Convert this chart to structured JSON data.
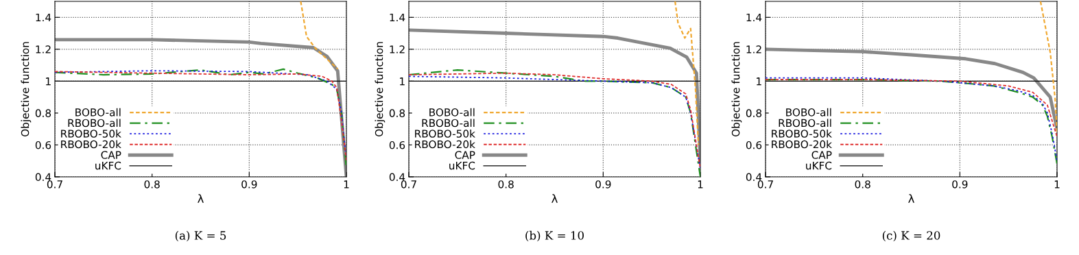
{
  "chart_data": [
    {
      "type": "line",
      "title": "(a) K = 5",
      "xlabel": "λ",
      "ylabel": "Objective function",
      "xlim": [
        0.7,
        1
      ],
      "xticks": [
        0.7,
        0.8,
        0.9,
        1
      ],
      "ylim": [
        0.4,
        1.5
      ],
      "yticks": [
        0.4,
        0.6,
        0.8,
        1,
        1.2,
        1.4
      ],
      "grid": true,
      "legend": "bottom left",
      "series": [
        {
          "name": "BOBO-all",
          "color": "#f0a830",
          "line_style": "dashed",
          "x": [
            0.953,
            0.959,
            0.968,
            0.991
          ],
          "values": [
            1.5,
            1.28,
            1.206,
            1.077
          ]
        },
        {
          "name": "RBOBO-all",
          "color": "#1f8f1f",
          "line_style": "dashdot",
          "x": [
            0.7,
            0.75,
            0.8,
            0.85,
            0.88,
            0.9,
            0.915,
            0.935,
            0.95,
            0.97,
            0.985,
            0.99,
            0.995,
            1.0
          ],
          "values": [
            1.055,
            1.04,
            1.045,
            1.07,
            1.04,
            1.055,
            1.045,
            1.075,
            1.05,
            1.02,
            0.98,
            0.95,
            0.8,
            0.45
          ]
        },
        {
          "name": "RBOBO-50k",
          "color": "#1c1ce0",
          "line_style": "dotted",
          "x": [
            0.7,
            0.8,
            0.9,
            0.93,
            0.96,
            0.98,
            0.99,
            0.995,
            1.0
          ],
          "values": [
            1.055,
            1.065,
            1.06,
            1.05,
            1.04,
            1.0,
            0.95,
            0.8,
            0.5
          ]
        },
        {
          "name": "RBOBO-20k",
          "color": "#e03030",
          "line_style": "dashed",
          "x": [
            0.7,
            0.8,
            0.9,
            0.95,
            0.975,
            0.985,
            0.99,
            0.995,
            1.0
          ],
          "values": [
            1.06,
            1.05,
            1.04,
            1.045,
            1.03,
            1.0,
            0.96,
            0.75,
            0.5
          ]
        },
        {
          "name": "CAP",
          "color": "#888888",
          "line_style": "solid",
          "x": [
            0.7,
            0.8,
            0.9,
            0.912,
            0.966,
            0.98,
            0.991,
            1.0
          ],
          "values": [
            1.26,
            1.26,
            1.245,
            1.236,
            1.21,
            1.155,
            1.064,
            0.4
          ]
        },
        {
          "name": "uKFC",
          "color": "#000000",
          "line_style": "solid",
          "x": [
            0.7,
            1.0
          ],
          "values": [
            1,
            1
          ]
        }
      ]
    },
    {
      "type": "line",
      "title": "(b) K = 10",
      "xlabel": "λ",
      "ylabel": "Objective function",
      "xlim": [
        0.7,
        1
      ],
      "xticks": [
        0.7,
        0.8,
        0.9,
        1
      ],
      "ylim": [
        0.4,
        1.5
      ],
      "yticks": [
        0.4,
        0.6,
        0.8,
        1,
        1.2,
        1.4
      ],
      "grid": true,
      "legend": "bottom left",
      "series": [
        {
          "name": "BOBO-all",
          "color": "#f0a830",
          "line_style": "dashed",
          "x": [
            0.974,
            0.977,
            0.984,
            0.99,
            0.995,
            0.998
          ],
          "values": [
            1.5,
            1.365,
            1.27,
            1.33,
            0.95,
            0.6
          ]
        },
        {
          "name": "RBOBO-all",
          "color": "#1f8f1f",
          "line_style": "dashdot",
          "x": [
            0.7,
            0.75,
            0.8,
            0.85,
            0.88,
            0.9,
            0.95,
            0.97,
            0.985,
            0.99,
            1.0
          ],
          "values": [
            1.04,
            1.07,
            1.05,
            1.03,
            1.0,
            1.0,
            0.99,
            0.96,
            0.9,
            0.8,
            0.4
          ]
        },
        {
          "name": "RBOBO-50k",
          "color": "#1c1ce0",
          "line_style": "dotted",
          "x": [
            0.7,
            0.8,
            0.85,
            0.9,
            0.95,
            0.97,
            0.985,
            0.99,
            1.0
          ],
          "values": [
            1.03,
            1.02,
            1.01,
            1.0,
            0.99,
            0.96,
            0.9,
            0.8,
            0.45
          ]
        },
        {
          "name": "RBOBO-20k",
          "color": "#e03030",
          "line_style": "dashed",
          "x": [
            0.7,
            0.8,
            0.85,
            0.9,
            0.95,
            0.97,
            0.985,
            0.99,
            1.0
          ],
          "values": [
            1.04,
            1.05,
            1.04,
            1.015,
            1.0,
            0.98,
            0.92,
            0.82,
            0.45
          ]
        },
        {
          "name": "CAP",
          "color": "#888888",
          "line_style": "solid",
          "x": [
            0.7,
            0.8,
            0.9,
            0.915,
            0.969,
            0.986,
            0.996,
            1.0
          ],
          "values": [
            1.32,
            1.3,
            1.28,
            1.27,
            1.206,
            1.15,
            1.05,
            0.5
          ]
        },
        {
          "name": "uKFC",
          "color": "#000000",
          "line_style": "solid",
          "x": [
            0.7,
            1.0
          ],
          "values": [
            1,
            1
          ]
        }
      ]
    },
    {
      "type": "line",
      "title": "(c) K = 20",
      "xlabel": "λ",
      "ylabel": "Objective function",
      "xlim": [
        0.7,
        1
      ],
      "xticks": [
        0.7,
        0.8,
        0.9,
        1
      ],
      "ylim": [
        0.4,
        1.5
      ],
      "yticks": [
        0.4,
        0.6,
        0.8,
        1,
        1.2,
        1.4
      ],
      "grid": true,
      "legend": "bottom left",
      "series": [
        {
          "name": "BOBO-all",
          "color": "#f0a830",
          "line_style": "dashed",
          "x": [
            0.983,
            0.993,
            0.998,
            1.0
          ],
          "values": [
            1.5,
            1.18,
            0.89,
            0.68
          ]
        },
        {
          "name": "RBOBO-all",
          "color": "#1f8f1f",
          "line_style": "dashdot",
          "x": [
            0.7,
            0.8,
            0.88,
            0.9,
            0.935,
            0.96,
            0.975,
            0.985,
            0.99,
            0.995,
            1.0
          ],
          "values": [
            1.01,
            1.01,
            1.0,
            0.99,
            0.97,
            0.93,
            0.9,
            0.85,
            0.78,
            0.65,
            0.48
          ]
        },
        {
          "name": "RBOBO-50k",
          "color": "#1c1ce0",
          "line_style": "dotted",
          "x": [
            0.7,
            0.8,
            0.88,
            0.9,
            0.935,
            0.96,
            0.975,
            0.985,
            0.99,
            0.995,
            1.0
          ],
          "values": [
            1.02,
            1.02,
            1.0,
            0.99,
            0.97,
            0.94,
            0.91,
            0.86,
            0.8,
            0.67,
            0.5
          ]
        },
        {
          "name": "RBOBO-20k",
          "color": "#e03030",
          "line_style": "dashed",
          "x": [
            0.7,
            0.8,
            0.9,
            0.95,
            0.975,
            0.99,
            0.995,
            1.0
          ],
          "values": [
            1.01,
            1.01,
            1.0,
            0.97,
            0.93,
            0.85,
            0.75,
            0.65
          ]
        },
        {
          "name": "CAP",
          "color": "#888888",
          "line_style": "solid",
          "x": [
            0.7,
            0.8,
            0.85,
            0.906,
            0.936,
            0.965,
            0.976,
            0.993,
            1.0
          ],
          "values": [
            1.2,
            1.185,
            1.165,
            1.14,
            1.11,
            1.055,
            1.02,
            0.9,
            0.7
          ]
        },
        {
          "name": "uKFC",
          "color": "#000000",
          "line_style": "solid",
          "x": [
            0.7,
            1.0
          ],
          "values": [
            1,
            1
          ]
        }
      ]
    }
  ]
}
